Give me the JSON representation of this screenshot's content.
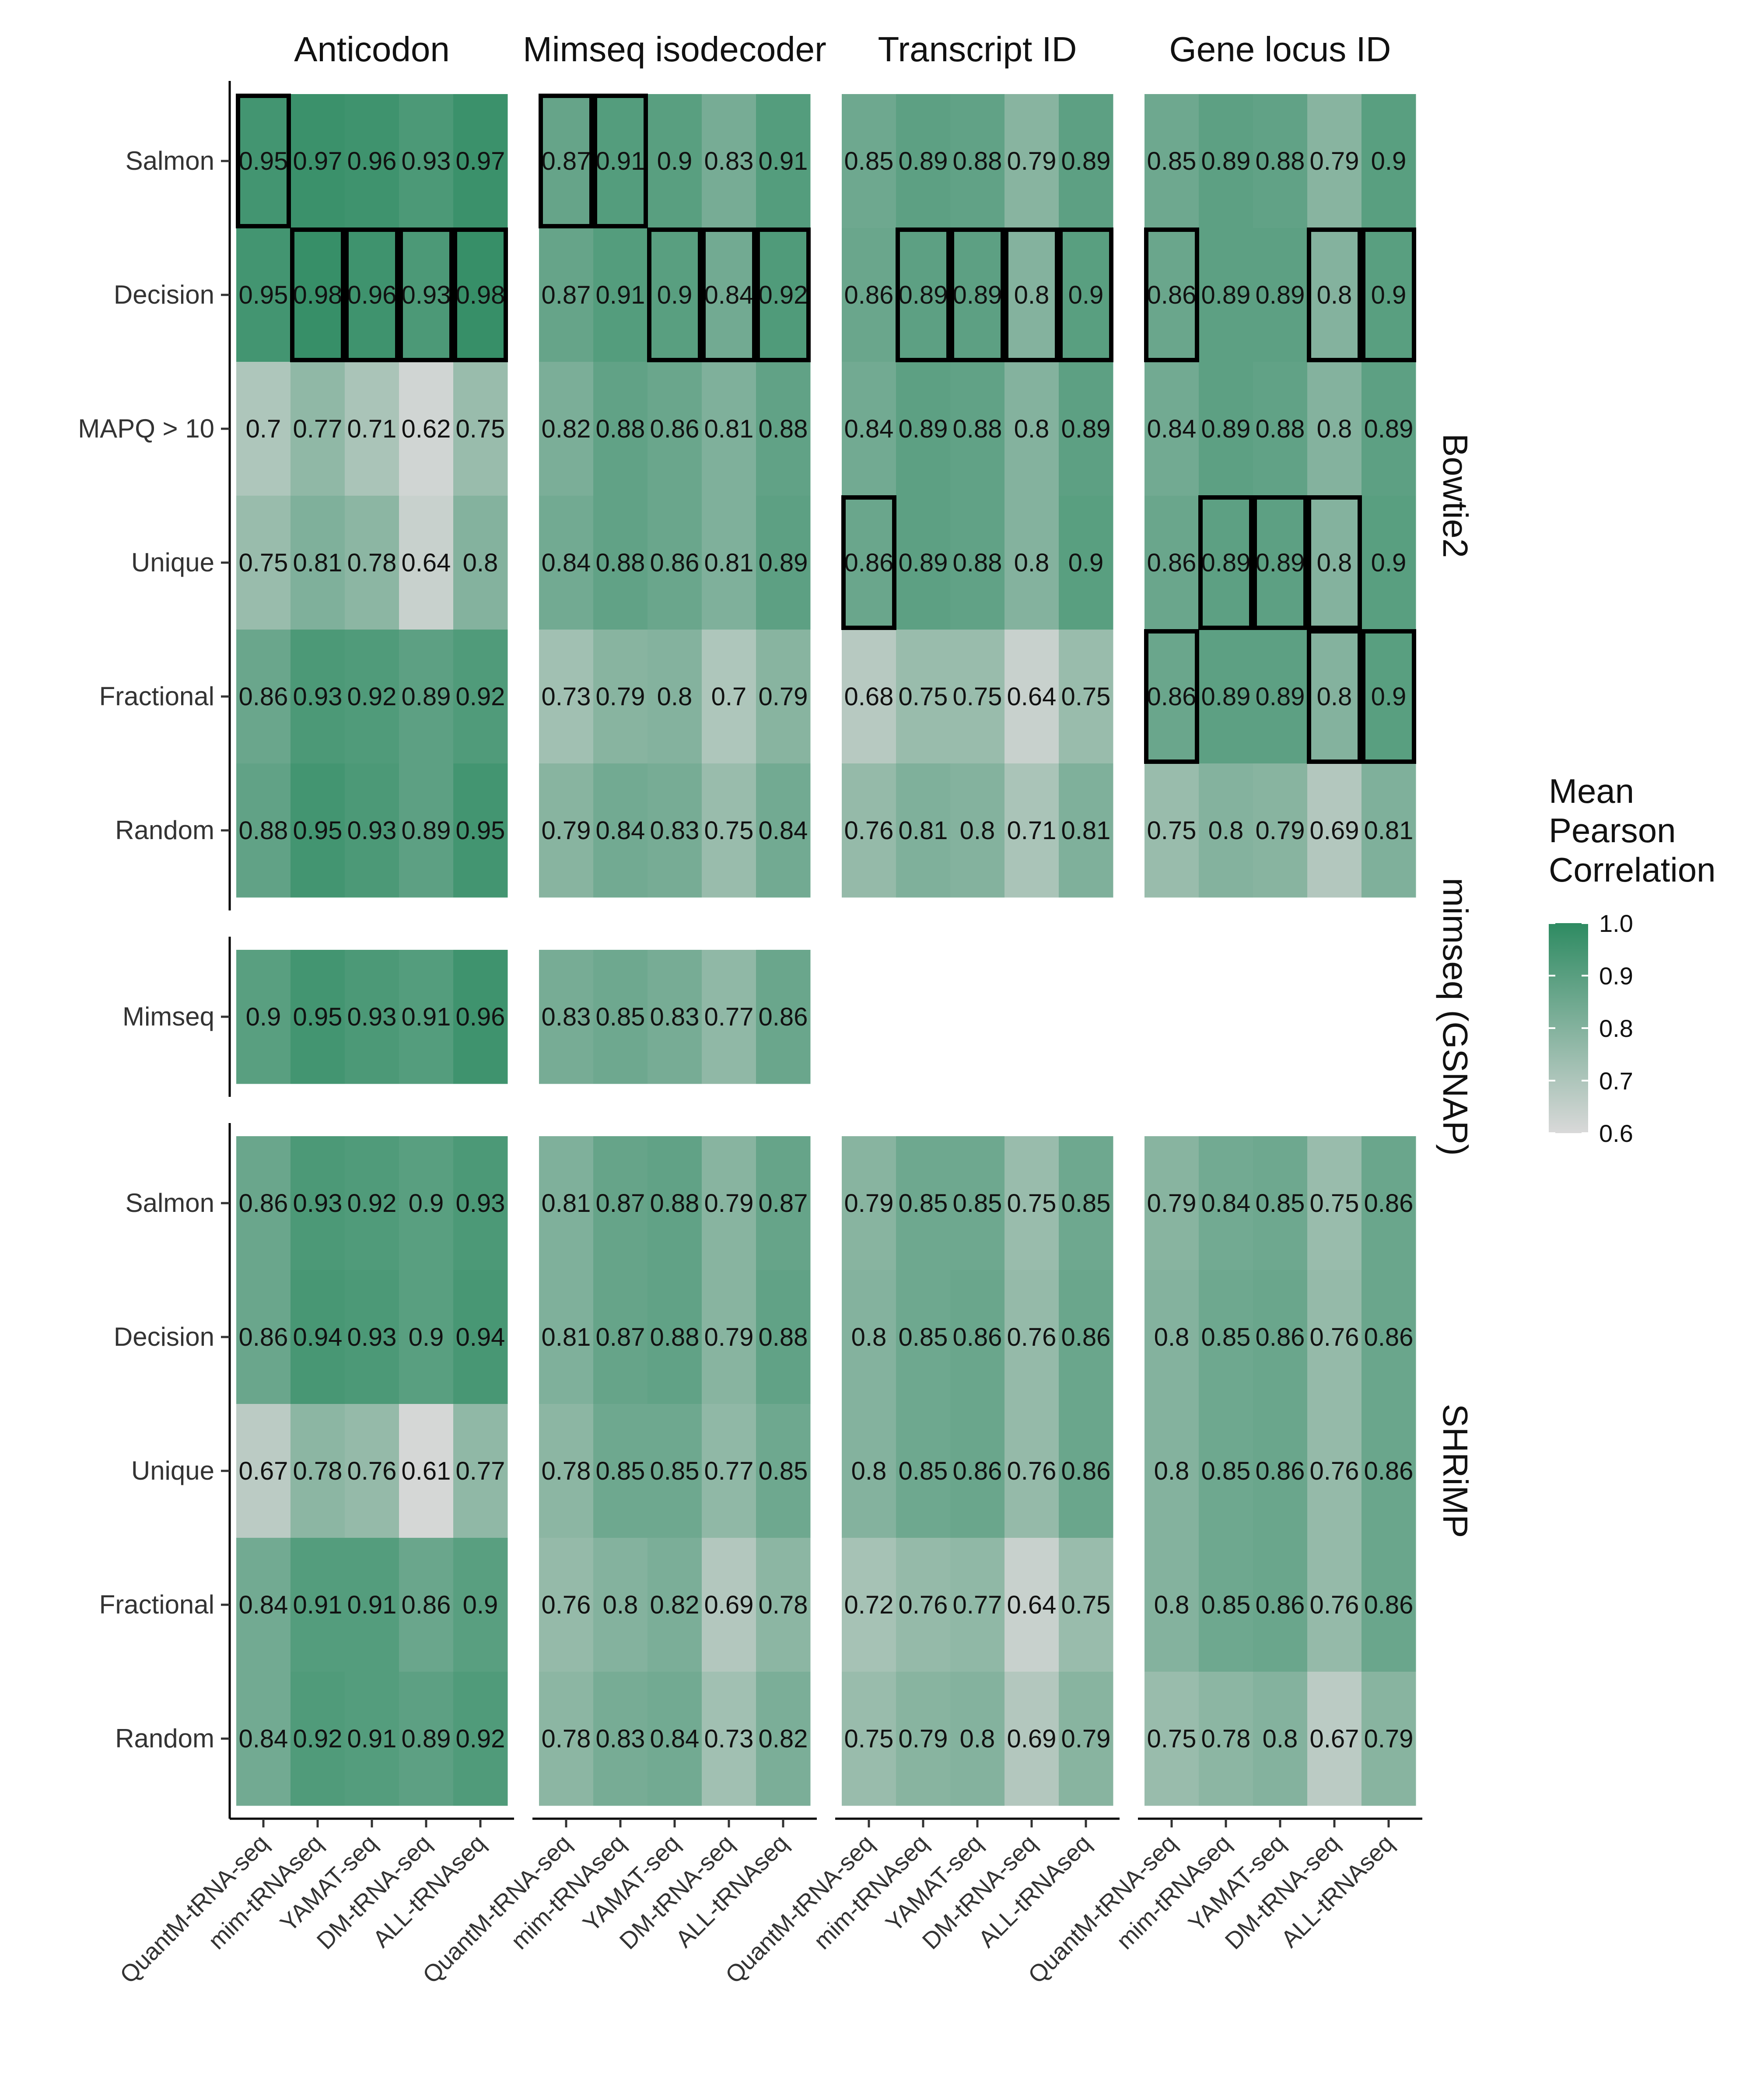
{
  "chart_data": {
    "type": "heatmap",
    "colors": {
      "low": "#d9d9d9",
      "high": "#2e8b62",
      "highlight_border": "#000000"
    },
    "column_facets": [
      "Anticodon",
      "Mimseq isodecoder",
      "Transcript ID",
      "Gene locus ID"
    ],
    "methods": [
      "QuantM-tRNA-seq",
      "mim-tRNAseq",
      "YAMAT-seq",
      "DM-tRNA-seq",
      "ALL-tRNAseq"
    ],
    "row_facets": [
      {
        "name": "Bowtie2",
        "rows": [
          "Salmon",
          "Decision",
          "MAPQ > 10",
          "Unique",
          "Fractional",
          "Random"
        ],
        "values": [
          [
            [
              0.95,
              0.97,
              0.96,
              0.93,
              0.97
            ],
            [
              0.87,
              0.91,
              0.9,
              0.83,
              0.91
            ],
            [
              0.85,
              0.89,
              0.88,
              0.79,
              0.89
            ],
            [
              0.85,
              0.89,
              0.88,
              0.79,
              0.9
            ]
          ],
          [
            [
              0.95,
              0.98,
              0.96,
              0.93,
              0.98
            ],
            [
              0.87,
              0.91,
              0.9,
              0.84,
              0.92
            ],
            [
              0.86,
              0.89,
              0.89,
              0.8,
              0.9
            ],
            [
              0.86,
              0.89,
              0.89,
              0.8,
              0.9
            ]
          ],
          [
            [
              0.7,
              0.77,
              0.71,
              0.62,
              0.75
            ],
            [
              0.82,
              0.88,
              0.86,
              0.81,
              0.88
            ],
            [
              0.84,
              0.89,
              0.88,
              0.8,
              0.89
            ],
            [
              0.84,
              0.89,
              0.88,
              0.8,
              0.89
            ]
          ],
          [
            [
              0.75,
              0.81,
              0.78,
              0.64,
              0.8
            ],
            [
              0.84,
              0.88,
              0.86,
              0.81,
              0.89
            ],
            [
              0.86,
              0.89,
              0.88,
              0.8,
              0.9
            ],
            [
              0.86,
              0.89,
              0.89,
              0.8,
              0.9
            ]
          ],
          [
            [
              0.86,
              0.93,
              0.92,
              0.89,
              0.92
            ],
            [
              0.73,
              0.79,
              0.8,
              0.7,
              0.79
            ],
            [
              0.68,
              0.75,
              0.75,
              0.64,
              0.75
            ],
            [
              0.86,
              0.89,
              0.89,
              0.8,
              0.9
            ]
          ],
          [
            [
              0.88,
              0.95,
              0.93,
              0.89,
              0.95
            ],
            [
              0.79,
              0.84,
              0.83,
              0.75,
              0.84
            ],
            [
              0.76,
              0.81,
              0.8,
              0.71,
              0.81
            ],
            [
              0.75,
              0.8,
              0.79,
              0.69,
              0.81
            ]
          ]
        ],
        "highlighted": [
          [
            [
              1,
              0,
              0,
              0,
              0
            ],
            [
              1,
              1,
              0,
              0,
              0
            ],
            [
              0,
              0,
              0,
              0,
              0
            ],
            [
              0,
              0,
              0,
              0,
              0
            ]
          ],
          [
            [
              0,
              1,
              1,
              1,
              1
            ],
            [
              0,
              0,
              1,
              1,
              1
            ],
            [
              0,
              1,
              1,
              1,
              1
            ],
            [
              1,
              0,
              0,
              1,
              1
            ]
          ],
          [
            [
              0,
              0,
              0,
              0,
              0
            ],
            [
              0,
              0,
              0,
              0,
              0
            ],
            [
              0,
              0,
              0,
              0,
              0
            ],
            [
              0,
              0,
              0,
              0,
              0
            ]
          ],
          [
            [
              0,
              0,
              0,
              0,
              0
            ],
            [
              0,
              0,
              0,
              0,
              0
            ],
            [
              1,
              0,
              0,
              0,
              0
            ],
            [
              0,
              1,
              1,
              1,
              0
            ]
          ],
          [
            [
              0,
              0,
              0,
              0,
              0
            ],
            [
              0,
              0,
              0,
              0,
              0
            ],
            [
              0,
              0,
              0,
              0,
              0
            ],
            [
              1,
              0,
              0,
              1,
              1
            ]
          ],
          [
            [
              0,
              0,
              0,
              0,
              0
            ],
            [
              0,
              0,
              0,
              0,
              0
            ],
            [
              0,
              0,
              0,
              0,
              0
            ],
            [
              0,
              0,
              0,
              0,
              0
            ]
          ]
        ]
      },
      {
        "name": "mimseq (GSNAP)",
        "rows": [
          "Mimseq"
        ],
        "values": [
          [
            [
              0.9,
              0.95,
              0.93,
              0.91,
              0.96
            ],
            [
              0.83,
              0.85,
              0.83,
              0.77,
              0.86
            ],
            null,
            null
          ]
        ],
        "highlighted": null
      },
      {
        "name": "SHRiMP",
        "rows": [
          "Salmon",
          "Decision",
          "Unique",
          "Fractional",
          "Random"
        ],
        "values": [
          [
            [
              0.86,
              0.93,
              0.92,
              0.9,
              0.93
            ],
            [
              0.81,
              0.87,
              0.88,
              0.79,
              0.87
            ],
            [
              0.79,
              0.85,
              0.85,
              0.75,
              0.85
            ],
            [
              0.79,
              0.84,
              0.85,
              0.75,
              0.86
            ]
          ],
          [
            [
              0.86,
              0.94,
              0.93,
              0.9,
              0.94
            ],
            [
              0.81,
              0.87,
              0.88,
              0.79,
              0.88
            ],
            [
              0.8,
              0.85,
              0.86,
              0.76,
              0.86
            ],
            [
              0.8,
              0.85,
              0.86,
              0.76,
              0.86
            ]
          ],
          [
            [
              0.67,
              0.78,
              0.76,
              0.61,
              0.77
            ],
            [
              0.78,
              0.85,
              0.85,
              0.77,
              0.85
            ],
            [
              0.8,
              0.85,
              0.86,
              0.76,
              0.86
            ],
            [
              0.8,
              0.85,
              0.86,
              0.76,
              0.86
            ]
          ],
          [
            [
              0.84,
              0.91,
              0.91,
              0.86,
              0.9
            ],
            [
              0.76,
              0.8,
              0.82,
              0.69,
              0.78
            ],
            [
              0.72,
              0.76,
              0.77,
              0.64,
              0.75
            ],
            [
              0.8,
              0.85,
              0.86,
              0.76,
              0.86
            ]
          ],
          [
            [
              0.84,
              0.92,
              0.91,
              0.89,
              0.92
            ],
            [
              0.78,
              0.83,
              0.84,
              0.73,
              0.82
            ],
            [
              0.75,
              0.79,
              0.8,
              0.69,
              0.79
            ],
            [
              0.75,
              0.78,
              0.8,
              0.67,
              0.79
            ]
          ]
        ],
        "highlighted": null
      }
    ],
    "legend": {
      "title_lines": [
        "Mean",
        "Pearson",
        "Correlation"
      ],
      "range": [
        0.6,
        1.0
      ],
      "ticks": [
        "1.0",
        "0.9",
        "0.8",
        "0.7",
        "0.6"
      ]
    }
  }
}
